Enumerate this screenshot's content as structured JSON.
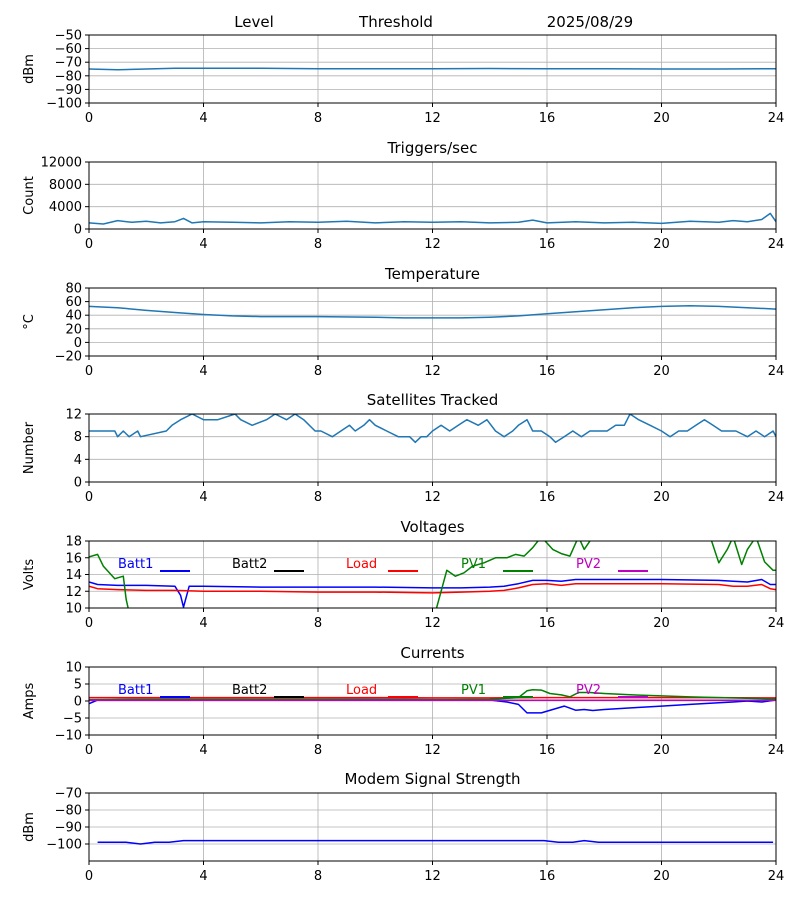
{
  "header": {
    "level_label": "Level",
    "threshold_label": "Threshold",
    "date": "2025/08/29"
  },
  "colors": {
    "default_line": "#1f77b4",
    "batt1": "#0000ff",
    "batt2": "#000000",
    "load": "#ff0000",
    "pv1": "#008000",
    "pv2": "#bf00bf"
  },
  "chart_data": [
    {
      "type": "line",
      "title": "",
      "ylabel": "dBm",
      "xlim": [
        0,
        24
      ],
      "ylim": [
        -100,
        -50
      ],
      "yticks": [
        -100,
        -90,
        -80,
        -70,
        -60,
        -50
      ],
      "xticks": [
        0,
        4,
        8,
        12,
        16,
        20,
        24
      ],
      "grid": true,
      "series": [
        {
          "color": "#1f77b4",
          "x": [
            0,
            1,
            2,
            3,
            4,
            6,
            8,
            10,
            12,
            14,
            16,
            18,
            20,
            22,
            24
          ],
          "y": [
            -75,
            -75.5,
            -75,
            -74.5,
            -74.5,
            -74.5,
            -74.8,
            -74.8,
            -74.8,
            -74.6,
            -74.8,
            -74.8,
            -75,
            -75,
            -74.8
          ]
        }
      ]
    },
    {
      "type": "line",
      "title": "Triggers/sec",
      "ylabel": "Count",
      "xlim": [
        0,
        24
      ],
      "ylim": [
        0,
        12000
      ],
      "yticks": [
        0,
        4000,
        8000,
        12000
      ],
      "xticks": [
        0,
        4,
        8,
        12,
        16,
        20,
        24
      ],
      "grid": true,
      "series": [
        {
          "color": "#1f77b4",
          "x": [
            0,
            0.5,
            1,
            1.5,
            2,
            2.5,
            3,
            3.3,
            3.6,
            4,
            5,
            6,
            7,
            8,
            9,
            10,
            11,
            12,
            13,
            14,
            15,
            15.5,
            16,
            17,
            18,
            19,
            20,
            21,
            22,
            22.5,
            23,
            23.5,
            23.8,
            24
          ],
          "y": [
            1100,
            900,
            1500,
            1200,
            1400,
            1100,
            1300,
            1900,
            1100,
            1300,
            1200,
            1100,
            1300,
            1200,
            1400,
            1100,
            1300,
            1200,
            1300,
            1100,
            1200,
            1600,
            1100,
            1300,
            1100,
            1200,
            1000,
            1400,
            1200,
            1500,
            1300,
            1700,
            2800,
            1300
          ]
        }
      ]
    },
    {
      "type": "line",
      "title": "Temperature",
      "ylabel": "°C",
      "xlim": [
        0,
        24
      ],
      "ylim": [
        -20,
        80
      ],
      "yticks": [
        -20,
        0,
        20,
        40,
        60,
        80
      ],
      "xticks": [
        0,
        4,
        8,
        12,
        16,
        20,
        24
      ],
      "grid": true,
      "series": [
        {
          "color": "#1f77b4",
          "x": [
            0,
            1,
            2,
            3,
            4,
            5,
            6,
            8,
            10,
            11,
            12,
            13,
            14,
            15,
            16,
            17,
            18,
            19,
            20,
            21,
            22,
            23,
            24
          ],
          "y": [
            53,
            51,
            47,
            44,
            41,
            39,
            38,
            38,
            37,
            36,
            36,
            36,
            37,
            39,
            42,
            45,
            48,
            51,
            53,
            54,
            53,
            51,
            49
          ]
        }
      ]
    },
    {
      "type": "line",
      "title": "Satellites Tracked",
      "ylabel": "Number",
      "xlim": [
        0,
        24
      ],
      "ylim": [
        0,
        12
      ],
      "yticks": [
        0,
        4,
        8,
        12
      ],
      "xticks": [
        0,
        4,
        8,
        12,
        16,
        20,
        24
      ],
      "grid": true,
      "series": [
        {
          "color": "#1f77b4",
          "x": [
            0,
            0.9,
            1,
            1.2,
            1.4,
            1.7,
            1.8,
            2.7,
            2.9,
            3.2,
            3.6,
            4,
            4.5,
            5.1,
            5.3,
            5.7,
            6.2,
            6.5,
            6.9,
            7.2,
            7.5,
            7.9,
            8.1,
            8.5,
            8.8,
            9.1,
            9.3,
            9.6,
            9.8,
            10,
            10.4,
            10.8,
            11.2,
            11.4,
            11.6,
            11.8,
            12,
            12.3,
            12.6,
            12.9,
            13.2,
            13.6,
            13.9,
            14.2,
            14.5,
            14.8,
            15,
            15.3,
            15.5,
            15.8,
            16.1,
            16.3,
            16.6,
            16.9,
            17.2,
            17.5,
            17.8,
            18.1,
            18.4,
            18.7,
            18.9,
            19.2,
            19.6,
            20,
            20.3,
            20.6,
            20.9,
            21.2,
            21.5,
            21.8,
            22.1,
            22.6,
            23,
            23.3,
            23.6,
            23.9,
            24
          ],
          "y": [
            9,
            9,
            8,
            9,
            8,
            9,
            8,
            9,
            10,
            11,
            12,
            11,
            11,
            12,
            11,
            10,
            11,
            12,
            11,
            12,
            11,
            9,
            9,
            8,
            9,
            10,
            9,
            10,
            11,
            10,
            9,
            8,
            8,
            7,
            8,
            8,
            9,
            10,
            9,
            10,
            11,
            10,
            11,
            9,
            8,
            9,
            10,
            11,
            9,
            9,
            8,
            7,
            8,
            9,
            8,
            9,
            9,
            9,
            10,
            10,
            12,
            11,
            10,
            9,
            8,
            9,
            9,
            10,
            11,
            10,
            9,
            9,
            8,
            9,
            8,
            9,
            8
          ]
        }
      ]
    },
    {
      "type": "line",
      "title": "Voltages",
      "ylabel": "Volts",
      "xlim": [
        0,
        24
      ],
      "ylim": [
        10,
        18
      ],
      "yticks": [
        10,
        12,
        14,
        16,
        18
      ],
      "xticks": [
        0,
        4,
        8,
        12,
        16,
        20,
        24
      ],
      "grid": true,
      "legend": [
        "Batt1",
        "Batt2",
        "Load",
        "PV1",
        "PV2"
      ],
      "series": [
        {
          "name": "Batt1",
          "color": "#0000ff",
          "x": [
            0,
            0.3,
            1,
            2,
            3,
            3.2,
            3.3,
            3.5,
            4,
            6,
            8,
            10,
            12,
            13,
            14,
            14.5,
            15,
            15.5,
            16,
            16.5,
            17,
            18,
            20,
            22,
            22.5,
            23,
            23.5,
            23.8,
            24
          ],
          "y": [
            13.1,
            12.8,
            12.7,
            12.7,
            12.6,
            11.5,
            10.1,
            12.6,
            12.6,
            12.5,
            12.5,
            12.5,
            12.4,
            12.4,
            12.5,
            12.6,
            12.9,
            13.3,
            13.3,
            13.2,
            13.4,
            13.4,
            13.4,
            13.3,
            13.2,
            13.1,
            13.4,
            12.8,
            12.8
          ]
        },
        {
          "name": "Load",
          "color": "#ff0000",
          "x": [
            0,
            0.3,
            1,
            2,
            3,
            4,
            6,
            8,
            10,
            12,
            13,
            14,
            14.5,
            15,
            15.5,
            16,
            16.5,
            17,
            18,
            20,
            22,
            22.5,
            23,
            23.5,
            23.8,
            24
          ],
          "y": [
            12.6,
            12.3,
            12.2,
            12.1,
            12.1,
            12.0,
            12.0,
            11.9,
            11.9,
            11.8,
            11.9,
            12.0,
            12.1,
            12.4,
            12.8,
            12.9,
            12.7,
            12.9,
            12.9,
            12.9,
            12.8,
            12.6,
            12.6,
            12.8,
            12.3,
            12.2
          ]
        },
        {
          "name": "PV1",
          "color": "#008000",
          "x": [
            0,
            0.3,
            0.5,
            0.9,
            1.2,
            1.3,
            1.4,
            12.1,
            12.3,
            12.5,
            12.8,
            13.1,
            13.4,
            13.8,
            14.2,
            14.6,
            14.9,
            15.2,
            15.5,
            15.8,
            16.2,
            16.5,
            16.8,
            17.1,
            17.3,
            17.6,
            18,
            21.5,
            21.7,
            22,
            22.3,
            22.5,
            22.8,
            23,
            23.3,
            23.6,
            23.9,
            24
          ],
          "y": [
            16.1,
            16.4,
            15.0,
            13.5,
            13.8,
            11.0,
            9.5,
            9.5,
            12.0,
            14.5,
            13.8,
            14.2,
            15.0,
            15.4,
            16.0,
            16.0,
            16.4,
            16.2,
            17.2,
            18.5,
            17.0,
            16.5,
            16.2,
            18.5,
            17.0,
            18.5,
            19.5,
            19.5,
            18.5,
            15.4,
            17.0,
            18.5,
            15.2,
            17.0,
            18.5,
            15.5,
            14.5,
            14.5
          ]
        }
      ]
    },
    {
      "type": "line",
      "title": "Currents",
      "ylabel": "Amps",
      "xlim": [
        0,
        24
      ],
      "ylim": [
        -10,
        10
      ],
      "yticks": [
        -10,
        -5,
        0,
        5,
        10
      ],
      "xticks": [
        0,
        4,
        8,
        12,
        16,
        20,
        24
      ],
      "grid": true,
      "legend": [
        "Batt1",
        "Batt2",
        "Load",
        "PV1",
        "PV2"
      ],
      "series": [
        {
          "name": "Batt1",
          "color": "#0000ff",
          "x": [
            0,
            0.3,
            1,
            3,
            6,
            9,
            12,
            14,
            14.6,
            15,
            15.3,
            15.8,
            16.2,
            16.6,
            17,
            17.3,
            17.6,
            18,
            19,
            20,
            21,
            22,
            22.5,
            23,
            23.5,
            24
          ],
          "y": [
            -0.8,
            0.3,
            0.4,
            0.5,
            0.5,
            0.5,
            0.4,
            0.3,
            -0.3,
            -1.0,
            -3.5,
            -3.5,
            -2.5,
            -1.5,
            -2.7,
            -2.5,
            -2.8,
            -2.5,
            -2.0,
            -1.5,
            -1.0,
            -0.5,
            -0.3,
            0,
            -0.3,
            0.3
          ]
        },
        {
          "name": "Load",
          "color": "#ff0000",
          "x": [
            0,
            2,
            4,
            6,
            8,
            10,
            12,
            14,
            16,
            18,
            20,
            22,
            24
          ],
          "y": [
            1.0,
            1.0,
            1.0,
            1.0,
            1.0,
            1.0,
            0.9,
            0.9,
            1.0,
            1.0,
            1.0,
            1.0,
            0.9
          ]
        },
        {
          "name": "PV1",
          "color": "#008000",
          "x": [
            0,
            2,
            4,
            8,
            12,
            14,
            15,
            15.3,
            15.5,
            15.8,
            16.1,
            16.5,
            16.8,
            17.1,
            17.5,
            18,
            19,
            20,
            21,
            22,
            23,
            24
          ],
          "y": [
            0.4,
            0.5,
            0.5,
            0.5,
            0.4,
            0.5,
            1.0,
            3.0,
            3.3,
            3.2,
            2.2,
            1.8,
            1.2,
            2.5,
            2.5,
            2.2,
            1.8,
            1.5,
            1.2,
            1.0,
            0.8,
            0.6
          ]
        },
        {
          "name": "PV2",
          "color": "#bf00bf",
          "x": [
            0,
            4,
            8,
            12,
            16,
            20,
            24
          ],
          "y": [
            0.2,
            0.2,
            0.2,
            0.2,
            0.2,
            0.2,
            0.2
          ]
        }
      ]
    },
    {
      "type": "line",
      "title": "Modem Signal Strength",
      "ylabel": "dBm",
      "xlim": [
        0,
        24
      ],
      "ylim": [
        -110,
        -70
      ],
      "yticks": [
        -100,
        -90,
        -80,
        -70
      ],
      "xticks": [
        0,
        4,
        8,
        12,
        16,
        20,
        24
      ],
      "grid": true,
      "series": [
        {
          "color": "#0000ff",
          "x": [
            0.3,
            1.3,
            1.8,
            2.3,
            2.8,
            3.3,
            4,
            8,
            12,
            15.9,
            16.4,
            16.9,
            17.3,
            17.8,
            18.3,
            20,
            22,
            23.9
          ],
          "y": [
            -99,
            -99,
            -100,
            -99,
            -99,
            -98,
            -98,
            -98,
            -98,
            -98,
            -99,
            -99,
            -98,
            -99,
            -99,
            -99,
            -99,
            -99
          ]
        }
      ]
    }
  ]
}
